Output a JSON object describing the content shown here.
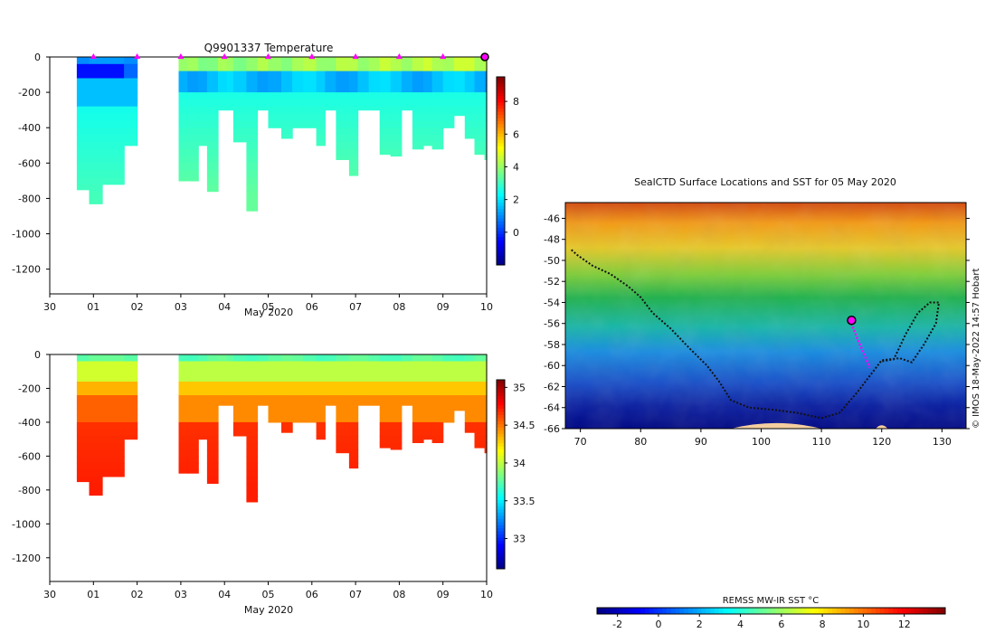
{
  "chart_data": [
    {
      "type": "heatmap",
      "name": "temperature-section",
      "title": "Q9901337  Temperature",
      "xlabel": "May 2020",
      "x_ticks": [
        "30",
        "01",
        "02",
        "03",
        "04",
        "05",
        "06",
        "07",
        "08",
        "09",
        "10"
      ],
      "xlim": [
        0,
        10
      ],
      "ylim": [
        -1340,
        0
      ],
      "y_ticks": [
        0,
        -200,
        -400,
        -600,
        -800,
        -1000,
        -1200
      ],
      "profile_days": [
        0.62,
        0.9,
        1.2,
        1.7,
        2.95,
        3.15,
        3.4,
        3.6,
        3.85,
        4.05,
        4.2,
        4.5,
        4.75,
        5.0,
        5.3,
        5.55,
        5.8,
        6.1,
        6.3,
        6.55,
        6.85,
        7.05,
        7.3,
        7.55,
        7.8,
        8.05,
        8.3,
        8.55,
        8.75,
        9.0,
        9.25,
        9.5,
        9.72,
        9.95
      ],
      "profile_max_depth": [
        750,
        830,
        720,
        500,
        700,
        700,
        500,
        760,
        300,
        300,
        480,
        870,
        300,
        400,
        460,
        400,
        400,
        500,
        300,
        580,
        670,
        300,
        300,
        550,
        560,
        300,
        520,
        500,
        520,
        400,
        330,
        460,
        550,
        580
      ],
      "markers": [
        1,
        2,
        3,
        4,
        5,
        6,
        7,
        8,
        9
      ],
      "current_marker": 10,
      "colorbar": {
        "min": -2,
        "max": 9.5,
        "ticks": [
          0,
          2,
          4,
          6,
          8
        ],
        "type": "jet"
      }
    },
    {
      "type": "heatmap",
      "name": "salinity-section",
      "title": "",
      "xlabel": "May 2020",
      "x_ticks": [
        "30",
        "01",
        "02",
        "03",
        "04",
        "05",
        "06",
        "07",
        "08",
        "09",
        "10"
      ],
      "xlim": [
        0,
        10
      ],
      "ylim": [
        -1340,
        0
      ],
      "y_ticks": [
        0,
        -200,
        -400,
        -600,
        -800,
        -1000,
        -1200
      ],
      "colorbar": {
        "min": 32.6,
        "max": 35.1,
        "ticks": [
          33,
          33.5,
          34,
          34.5,
          35
        ],
        "tick_labels": [
          "33",
          "33.5",
          "34",
          "34.5",
          "35"
        ],
        "type": "jet"
      }
    },
    {
      "type": "heatmap",
      "name": "sst-map",
      "title": "SealCTD Surface Locations and SST for 05 May 2020",
      "x_ticks": [
        70,
        80,
        90,
        100,
        110,
        120,
        130
      ],
      "y_ticks": [
        -46,
        -48,
        -50,
        -52,
        -54,
        -56,
        -58,
        -60,
        -62,
        -64,
        -66
      ],
      "xlim": [
        67.5,
        134
      ],
      "ylim": [
        -66,
        -44.5
      ],
      "track": [
        [
          68.5,
          -49
        ],
        [
          69.5,
          -49.5
        ],
        [
          72,
          -50.5
        ],
        [
          75,
          -51.3
        ],
        [
          78,
          -52.5
        ],
        [
          80,
          -53.5
        ],
        [
          82,
          -55
        ],
        [
          85,
          -56.5
        ],
        [
          88,
          -58.3
        ],
        [
          91,
          -60
        ],
        [
          93,
          -61.5
        ],
        [
          95,
          -63.3
        ],
        [
          98,
          -64
        ],
        [
          102,
          -64.2
        ],
        [
          106,
          -64.5
        ],
        [
          110,
          -65
        ],
        [
          113,
          -64.5
        ],
        [
          116,
          -62.5
        ],
        [
          118,
          -61
        ],
        [
          120,
          -59.5
        ],
        [
          123,
          -59.3
        ],
        [
          125,
          -59.7
        ],
        [
          127,
          -58
        ],
        [
          129,
          -56
        ],
        [
          129.5,
          -54
        ],
        [
          128,
          -54
        ],
        [
          126,
          -55
        ],
        [
          124,
          -57
        ],
        [
          122,
          -59.4
        ],
        [
          120,
          -59.6
        ]
      ],
      "recent_track": [
        [
          115,
          -56
        ],
        [
          116,
          -57.5
        ],
        [
          117,
          -58.8
        ],
        [
          118,
          -60.2
        ]
      ],
      "current_position": [
        115,
        -55.7
      ],
      "credit": "© IMOS 18-May-2022 14:57 Hobart",
      "colorbar": {
        "label": "REMSS MW-IR SST °C",
        "min": -3,
        "max": 14,
        "ticks": [
          -2,
          0,
          2,
          4,
          6,
          8,
          10,
          12
        ],
        "type": "jet"
      }
    }
  ],
  "colors": {
    "marker": "#ff00ff",
    "track": "#111111",
    "land": "#f5cfa0"
  }
}
